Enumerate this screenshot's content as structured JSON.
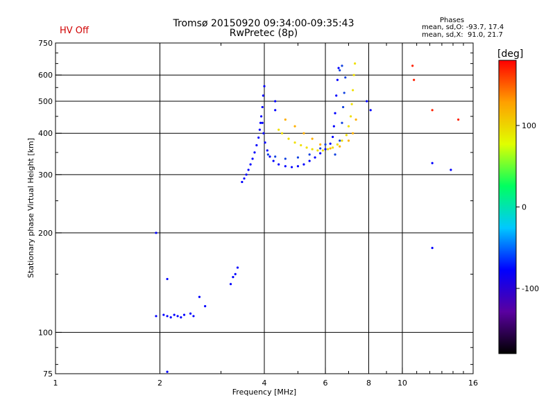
{
  "header": {
    "title": "Tromsø 20150920 09:34:00-09:35:43",
    "subtitle": "RwPretec (8p)",
    "hv_status": "HV Off",
    "hv_color": "#d00000",
    "phases_title": "Phases",
    "phases_o": "mean, sd,O: -93.7, 17.4",
    "phases_x": "mean, sd,X:  91.0, 21.7"
  },
  "colorbar": {
    "unit": "[deg]",
    "tick_labels": [
      "100",
      "0",
      "-100"
    ],
    "tick_values": [
      100,
      0,
      -100
    ],
    "range": [
      -180,
      180
    ],
    "colors": [
      "#000000",
      "#5a00a0",
      "#0000ff",
      "#00c8ff",
      "#00ff60",
      "#e0ff00",
      "#ffa000",
      "#ff0000"
    ]
  },
  "chart_data": {
    "type": "scatter",
    "xlabel": "Frequency [MHz]",
    "ylabel": "Stationary phase Virtual Height [km]",
    "x_scale": "log",
    "y_scale": "log",
    "xlim": [
      1,
      16
    ],
    "ylim": [
      75,
      750
    ],
    "x_ticks": [
      1,
      2,
      4,
      6,
      8,
      10,
      16
    ],
    "x_tick_labels": [
      "1",
      "2",
      "4",
      "6",
      "8",
      "10",
      "16"
    ],
    "y_ticks": [
      75,
      100,
      200,
      300,
      400,
      500,
      600,
      750
    ],
    "y_tick_labels": [
      "75",
      "100",
      "200",
      "300",
      "400",
      "500",
      "600",
      "750"
    ],
    "grid_x": [
      2,
      4,
      6,
      8,
      10
    ],
    "grid_y": [
      100,
      200,
      300,
      400,
      500,
      600
    ],
    "series": [
      {
        "id": "o-trace-rising",
        "color": "#0000ff",
        "points": [
          [
            3.45,
            285
          ],
          [
            3.5,
            292
          ],
          [
            3.55,
            300
          ],
          [
            3.6,
            310
          ],
          [
            3.65,
            322
          ],
          [
            3.7,
            335
          ],
          [
            3.75,
            350
          ],
          [
            3.8,
            368
          ],
          [
            3.85,
            388
          ],
          [
            3.88,
            410
          ],
          [
            3.9,
            430
          ],
          [
            3.92,
            450
          ],
          [
            3.95,
            480
          ],
          [
            3.97,
            520
          ],
          [
            4.0,
            555
          ]
        ]
      },
      {
        "id": "o-trace-lower",
        "color": "#0000ff",
        "points": [
          [
            3.95,
            430
          ],
          [
            3.98,
            400
          ],
          [
            4.02,
            375
          ],
          [
            4.08,
            355
          ],
          [
            4.15,
            340
          ],
          [
            4.25,
            330
          ],
          [
            4.4,
            322
          ],
          [
            4.6,
            318
          ],
          [
            4.8,
            316
          ],
          [
            5.0,
            318
          ],
          [
            5.2,
            322
          ],
          [
            5.4,
            330
          ],
          [
            5.6,
            338
          ],
          [
            5.8,
            348
          ],
          [
            6.0,
            358
          ],
          [
            6.2,
            372
          ],
          [
            6.3,
            390
          ],
          [
            6.35,
            420
          ],
          [
            6.4,
            460
          ],
          [
            6.45,
            520
          ],
          [
            6.5,
            580
          ],
          [
            6.55,
            630
          ]
        ]
      },
      {
        "id": "o-trace-second",
        "color": "#1040e0",
        "points": [
          [
            4.1,
            345
          ],
          [
            4.3,
            340
          ],
          [
            4.6,
            335
          ],
          [
            5.0,
            338
          ],
          [
            5.4,
            345
          ],
          [
            5.8,
            360
          ],
          [
            6.0,
            370
          ],
          [
            6.4,
            345
          ],
          [
            6.6,
            380
          ],
          [
            6.7,
            430
          ],
          [
            6.75,
            480
          ],
          [
            6.8,
            530
          ],
          [
            6.85,
            590
          ],
          [
            6.7,
            640
          ],
          [
            6.6,
            620
          ]
        ]
      },
      {
        "id": "x-trace",
        "color": "#f0e000",
        "points": [
          [
            4.4,
            410
          ],
          [
            4.5,
            400
          ],
          [
            4.7,
            385
          ],
          [
            4.9,
            375
          ],
          [
            5.1,
            368
          ],
          [
            5.3,
            362
          ],
          [
            5.5,
            358
          ],
          [
            5.7,
            355
          ],
          [
            5.9,
            355
          ],
          [
            6.1,
            358
          ],
          [
            6.3,
            362
          ],
          [
            6.5,
            370
          ],
          [
            6.7,
            380
          ],
          [
            6.9,
            395
          ],
          [
            7.0,
            420
          ],
          [
            7.1,
            450
          ],
          [
            7.15,
            490
          ],
          [
            7.2,
            540
          ],
          [
            7.25,
            600
          ],
          [
            7.3,
            650
          ]
        ]
      },
      {
        "id": "x-trace-upper",
        "color": "#ffb000",
        "points": [
          [
            4.6,
            440
          ],
          [
            4.9,
            420
          ],
          [
            5.2,
            400
          ],
          [
            5.5,
            385
          ],
          [
            5.8,
            370
          ],
          [
            6.2,
            360
          ],
          [
            6.6,
            365
          ],
          [
            7.0,
            380
          ],
          [
            7.2,
            400
          ],
          [
            7.35,
            440
          ]
        ]
      },
      {
        "id": "scattered-low",
        "color": "#0000ff",
        "points": [
          [
            1.95,
            112
          ],
          [
            2.05,
            113
          ],
          [
            2.1,
            112
          ],
          [
            2.15,
            111
          ],
          [
            2.2,
            113
          ],
          [
            2.25,
            112
          ],
          [
            2.3,
            111
          ],
          [
            2.35,
            113
          ],
          [
            2.45,
            114
          ],
          [
            2.5,
            112
          ],
          [
            2.6,
            128
          ],
          [
            2.7,
            120
          ],
          [
            3.2,
            140
          ],
          [
            3.25,
            147
          ],
          [
            3.3,
            150
          ],
          [
            3.35,
            157
          ],
          [
            1.95,
            200
          ],
          [
            2.1,
            76
          ],
          [
            2.1,
            145
          ],
          [
            4.3,
            500
          ],
          [
            4.3,
            470
          ],
          [
            7.9,
            500
          ],
          [
            8.1,
            470
          ],
          [
            12.2,
            325
          ],
          [
            13.8,
            310
          ],
          [
            12.2,
            180
          ]
        ]
      },
      {
        "id": "scattered-high-phase",
        "color": "#ff2000",
        "points": [
          [
            10.7,
            640
          ],
          [
            10.8,
            580
          ],
          [
            12.2,
            470
          ],
          [
            14.5,
            440
          ]
        ]
      }
    ]
  }
}
